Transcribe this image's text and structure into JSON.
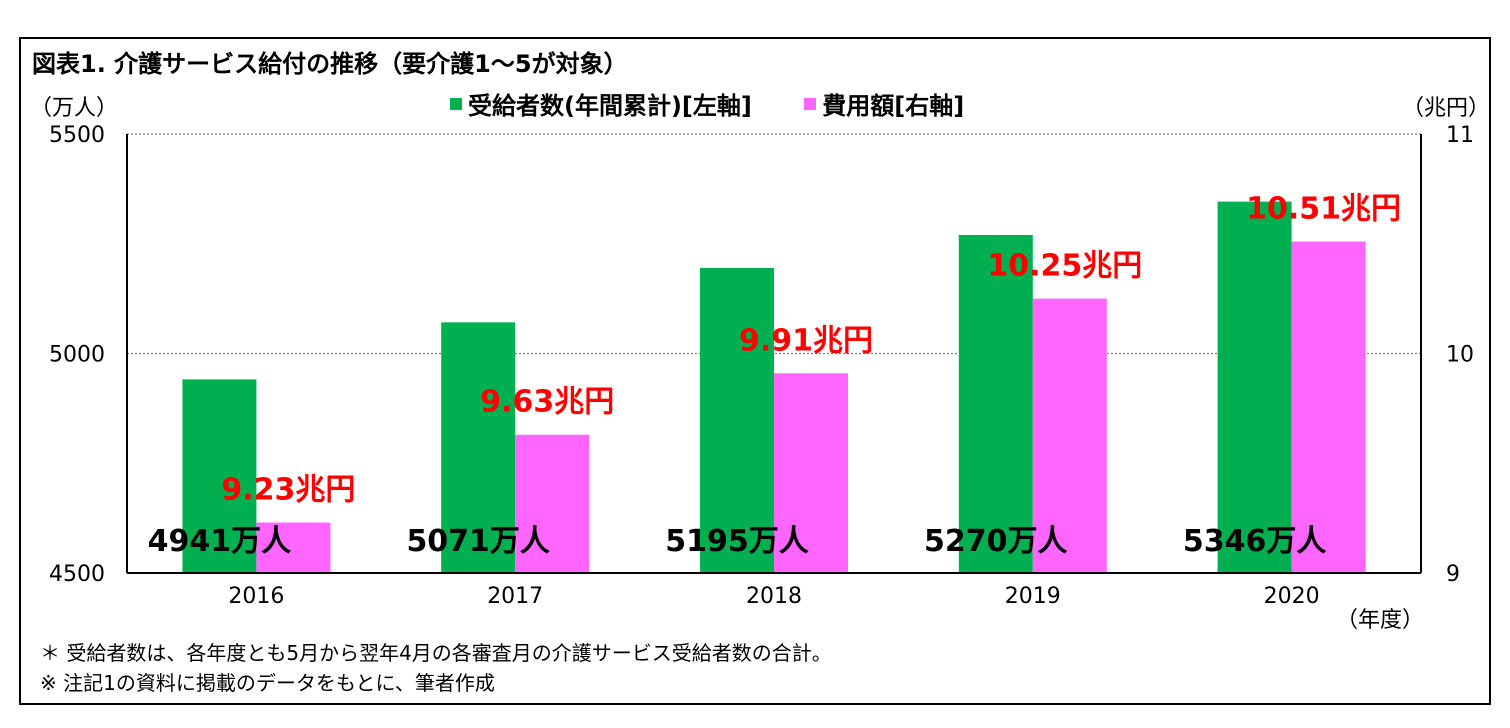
{
  "title": "図表1.  介護サービス給付の推移（要介護1～5が対象）",
  "units": {
    "left": "（万人）",
    "right": "（兆円）",
    "x": "（年度）"
  },
  "notes": [
    "＊  受給者数は、各年度とも5月から翌年4月の各審査月の介護サービス受給者数の合計。",
    "※ 注記1の資料に掲載のデータをもとに、筆者作成"
  ],
  "chart_data": {
    "type": "bar",
    "categories": [
      "2016",
      "2017",
      "2018",
      "2019",
      "2020"
    ],
    "series": [
      {
        "name": "受給者数(年間累計)[左軸]",
        "axis": "left",
        "color": "#00b050",
        "values": [
          4941,
          5071,
          5195,
          5270,
          5346
        ],
        "labels": [
          "4941万人",
          "5071万人",
          "5195万人",
          "5270万人",
          "5346万人"
        ],
        "label_color": "#000000"
      },
      {
        "name": "費用額[右軸]",
        "axis": "right",
        "color": "#ff66ff",
        "values": [
          9.23,
          9.63,
          9.91,
          10.25,
          10.51
        ],
        "labels": [
          "9.23兆円",
          "9.63兆円",
          "9.91兆円",
          "10.25兆円",
          "10.51兆円"
        ],
        "label_color": "#ff0000"
      }
    ],
    "y_left": {
      "range": [
        4500,
        5500
      ],
      "ticks": [
        "4500",
        "5000",
        "5500"
      ]
    },
    "y_right": {
      "range": [
        9,
        11
      ],
      "ticks": [
        "9",
        "10",
        "11"
      ]
    },
    "grid": "dotted horizontal",
    "legend": "top-center"
  }
}
